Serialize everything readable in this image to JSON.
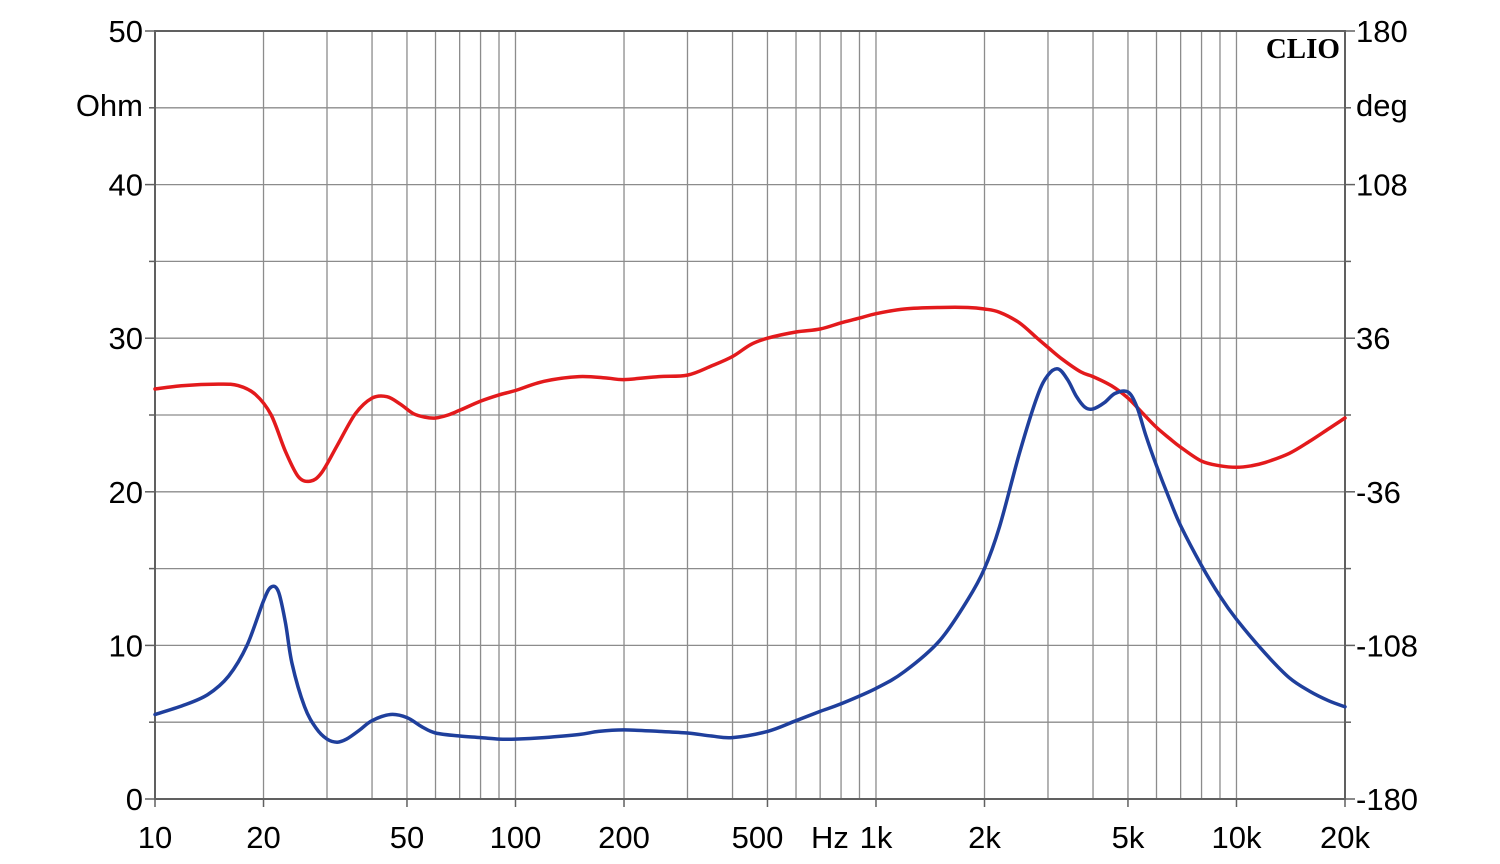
{
  "chart_data": {
    "type": "line",
    "logo": "CLIO",
    "x_scale": "log",
    "xlim": [
      10,
      20000
    ],
    "ylim_left": [
      0,
      50
    ],
    "ylim_right": [
      -180,
      180
    ],
    "grid": true,
    "left_unit": "Ohm",
    "right_unit": "deg",
    "x_ticks": [
      {
        "value": 10,
        "label": "10"
      },
      {
        "value": 20,
        "label": "20"
      },
      {
        "value": 50,
        "label": "50"
      },
      {
        "value": 100,
        "label": "100"
      },
      {
        "value": 200,
        "label": "200"
      },
      {
        "value": 500,
        "label": "500"
      },
      {
        "value": 1000,
        "label": "1k"
      },
      {
        "value": 2000,
        "label": "2k"
      },
      {
        "value": 5000,
        "label": "5k"
      },
      {
        "value": 10000,
        "label": "10k"
      },
      {
        "value": 20000,
        "label": "20k"
      }
    ],
    "x_unit_label": "Hz",
    "left_ticks": [
      {
        "value": 0,
        "label": "0"
      },
      {
        "value": 10,
        "label": "10"
      },
      {
        "value": 20,
        "label": "20"
      },
      {
        "value": 30,
        "label": "30"
      },
      {
        "value": 40,
        "label": "40"
      },
      {
        "value": 50,
        "label": "50"
      }
    ],
    "right_ticks": [
      {
        "value": -180,
        "label": "-180"
      },
      {
        "value": -108,
        "label": "-108"
      },
      {
        "value": -36,
        "label": "-36"
      },
      {
        "value": 36,
        "label": "36"
      },
      {
        "value": 108,
        "label": "108"
      },
      {
        "value": 180,
        "label": "180"
      }
    ],
    "series": [
      {
        "axis": "right",
        "color": "#e31a1c",
        "x": [
          10,
          12,
          15,
          17,
          19,
          21,
          23,
          25,
          27,
          29,
          32,
          36,
          40,
          44,
          48,
          52,
          56,
          60,
          65,
          70,
          80,
          90,
          100,
          120,
          150,
          180,
          200,
          250,
          300,
          350,
          400,
          450,
          500,
          600,
          700,
          800,
          900,
          1000,
          1200,
          1500,
          1800,
          2000,
          2200,
          2500,
          2800,
          3000,
          3300,
          3700,
          4000,
          4500,
          5000,
          5500,
          6000,
          6500,
          7000,
          8000,
          9000,
          10000,
          11000,
          12000,
          14000,
          16000,
          18000,
          20000
        ],
        "y": [
          12.2,
          13.8,
          14.5,
          13.8,
          9.6,
          0,
          -17,
          -29,
          -31,
          -27,
          -14.4,
          0.7,
          7.9,
          8.6,
          5,
          0.7,
          -1,
          -1.4,
          0,
          2.2,
          6.5,
          9.4,
          11.5,
          15.8,
          18,
          17.3,
          16.6,
          18,
          18.7,
          23,
          27.4,
          33.1,
          36,
          38.9,
          40.3,
          43.2,
          45.4,
          47.5,
          49.7,
          50.4,
          50.4,
          49.7,
          48.2,
          43.2,
          36,
          31.7,
          25.9,
          20.2,
          18,
          13.7,
          7.9,
          0.7,
          -5.8,
          -10.8,
          -15.1,
          -21.6,
          -23.8,
          -24.5,
          -23.8,
          -22.3,
          -18,
          -12.2,
          -6.5,
          -1.4
        ]
      },
      {
        "axis": "left",
        "color": "#1f3f9c",
        "x": [
          10,
          12,
          14,
          16,
          18,
          20,
          21,
          22,
          23,
          24,
          26,
          28,
          30,
          32,
          34,
          37,
          40,
          45,
          50,
          55,
          60,
          70,
          80,
          90,
          100,
          120,
          150,
          170,
          200,
          250,
          300,
          350,
          400,
          500,
          600,
          700,
          800,
          1000,
          1200,
          1500,
          1800,
          2000,
          2200,
          2500,
          2800,
          3000,
          3200,
          3400,
          3600,
          3800,
          4000,
          4300,
          4600,
          5000,
          5300,
          5600,
          6000,
          6500,
          7000,
          8000,
          9000,
          10000,
          12000,
          14000,
          16000,
          18000,
          20000
        ],
        "y": [
          5.5,
          6.1,
          6.8,
          8,
          10,
          12.9,
          13.8,
          13.5,
          11.5,
          8.8,
          6,
          4.6,
          3.9,
          3.7,
          3.9,
          4.5,
          5.1,
          5.5,
          5.3,
          4.7,
          4.3,
          4.1,
          4,
          3.9,
          3.9,
          4,
          4.2,
          4.4,
          4.5,
          4.4,
          4.3,
          4.1,
          4,
          4.4,
          5.1,
          5.7,
          6.2,
          7.2,
          8.3,
          10.3,
          13,
          15,
          17.7,
          22.5,
          26.2,
          27.6,
          28,
          27.3,
          26.2,
          25.5,
          25.4,
          25.8,
          26.4,
          26.5,
          25.5,
          23.7,
          21.7,
          19.6,
          17.8,
          15.2,
          13.2,
          11.7,
          9.5,
          7.9,
          7,
          6.4,
          6
        ]
      }
    ]
  }
}
